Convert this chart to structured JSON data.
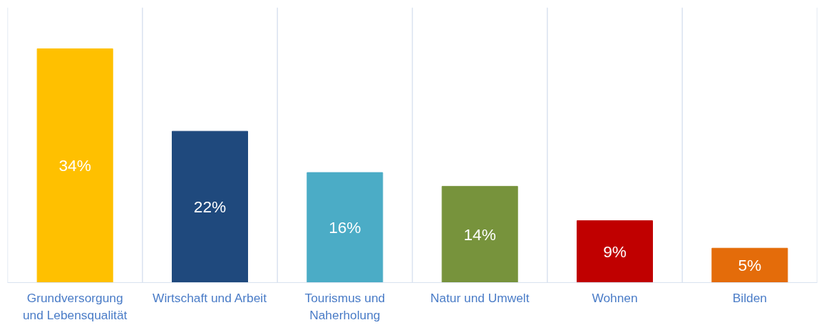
{
  "chart_data": {
    "type": "bar",
    "categories": [
      "Grundversorgung und Lebensqualität",
      "Wirtschaft und Arbeit",
      "Tourismus und Naherholung",
      "Natur und Umwelt",
      "Wohnen",
      "Bilden"
    ],
    "values": [
      34,
      22,
      16,
      14,
      9,
      5
    ],
    "value_labels": [
      "34%",
      "22%",
      "16%",
      "14%",
      "9%",
      "5%"
    ],
    "colors": [
      "#ffc000",
      "#1f497d",
      "#4bacc6",
      "#77933c",
      "#c00000",
      "#e46c0a"
    ],
    "ylim": [
      0,
      40
    ],
    "grid": "x"
  }
}
